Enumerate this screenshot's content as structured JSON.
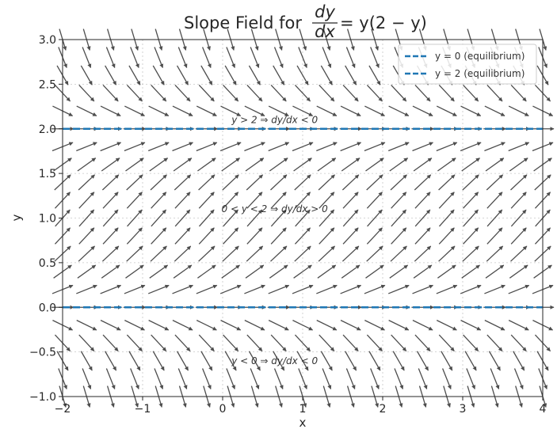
{
  "chart_data": {
    "type": "slope_field",
    "title_prefix": "Slope Field for ",
    "title_equation": "= y(2 − y)",
    "title_fraction_num": "dy",
    "title_fraction_den": "dx",
    "equation": "dy/dx = y(2 - y)",
    "xlabel": "x",
    "ylabel": "y",
    "xlim": [
      -2,
      4
    ],
    "ylim": [
      -1,
      3
    ],
    "xticks": [
      -2,
      -1,
      0,
      1,
      2,
      3,
      4
    ],
    "xtick_labels": [
      "−2",
      "−1",
      "0",
      "1",
      "2",
      "3",
      "4"
    ],
    "yticks": [
      -1.0,
      -0.5,
      0.0,
      0.5,
      1.0,
      1.5,
      2.0,
      2.5,
      3.0
    ],
    "ytick_labels": [
      "−1.0",
      "−0.5",
      "0.0",
      "0.5",
      "1.0",
      "1.5",
      "2.0",
      "2.5",
      "3.0"
    ],
    "grid": true,
    "field": {
      "x_start": -2,
      "x_step": 0.3,
      "x_count": 21,
      "y_start": -1,
      "y_step": 0.2,
      "y_count": 21,
      "arrow_color": "#4d4d4d"
    },
    "equilibria": [
      {
        "y": 0,
        "label": "y = 0 (equilibrium)",
        "color": "#1f77b4"
      },
      {
        "y": 2,
        "label": "y = 2 (equilibrium)",
        "color": "#1f77b4"
      }
    ],
    "legend_position": "upper right",
    "annotations": [
      {
        "text": "y > 2 ⇒ dy/dx < 0",
        "x": 0.65,
        "y": 2.1
      },
      {
        "text": "0 < y < 2 ⇒ dy/dx > 0",
        "x": 0.65,
        "y": 1.1
      },
      {
        "text": "y < 0 ⇒ dy/dx < 0",
        "x": 0.65,
        "y": -0.6
      }
    ]
  }
}
